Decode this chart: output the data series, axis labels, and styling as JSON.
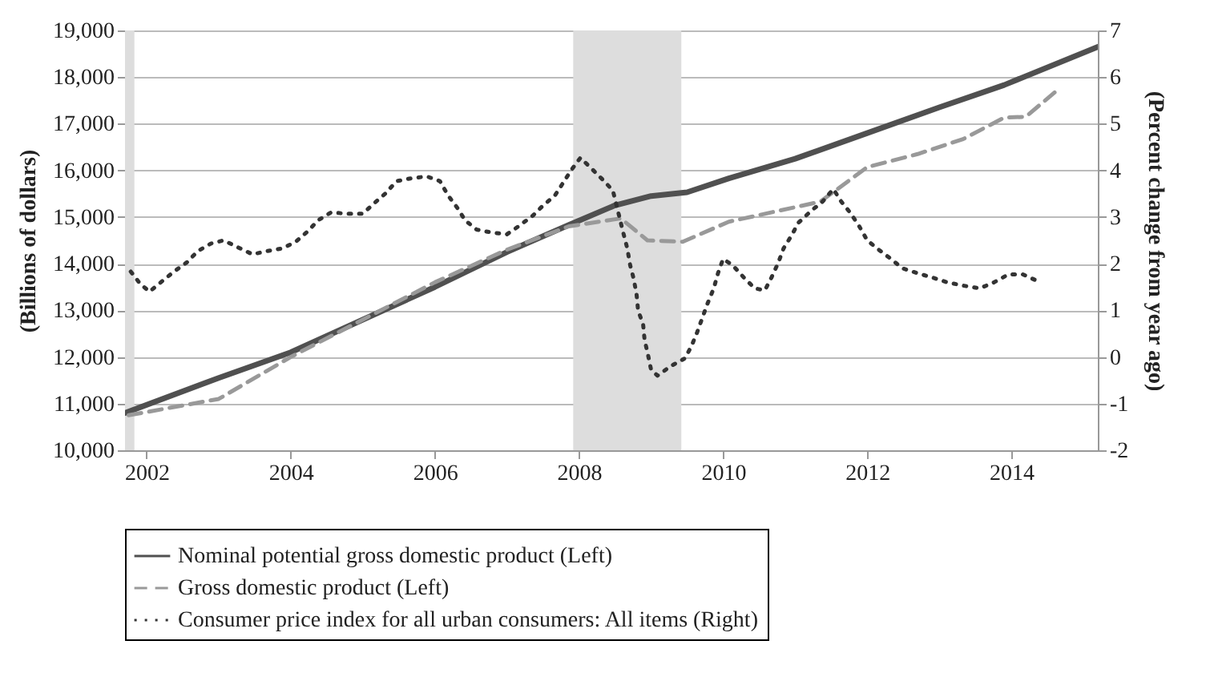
{
  "chart_data": {
    "type": "line",
    "ylabel": "(Billions of dollars)",
    "y2label": "(Percent change from year ago)",
    "xlim": [
      2001.7,
      2015.2
    ],
    "xticks": [
      2002,
      2004,
      2006,
      2008,
      2010,
      2012,
      2014
    ],
    "ylim": [
      10000,
      19000
    ],
    "yticks": [
      {
        "value": 10000,
        "label": "10,000"
      },
      {
        "value": 11000,
        "label": "11,000"
      },
      {
        "value": 12000,
        "label": "12,000"
      },
      {
        "value": 13000,
        "label": "13,000"
      },
      {
        "value": 14000,
        "label": "14,000"
      },
      {
        "value": 15000,
        "label": "15,000"
      },
      {
        "value": 16000,
        "label": "16,000"
      },
      {
        "value": 17000,
        "label": "17,000"
      },
      {
        "value": 18000,
        "label": "18,000"
      },
      {
        "value": 19000,
        "label": "19,000"
      }
    ],
    "y2lim": [
      -2,
      7
    ],
    "y2ticks": [
      -2,
      -1,
      0,
      1,
      2,
      3,
      4,
      5,
      6,
      7
    ],
    "grid": "y",
    "legend": "bottom",
    "bands": [
      {
        "axis": "x",
        "from": 2001.7,
        "to": 2001.83,
        "color": "#dddddd"
      },
      {
        "axis": "x",
        "from": 2007.92,
        "to": 2009.42,
        "color": "#dddddd"
      }
    ],
    "series": [
      {
        "name": "Nominal potential gross domestic product (Left)",
        "color": "#505050",
        "line_style": "solid",
        "x": [
          2001.7,
          2003,
          2004,
          2005,
          2006,
          2007,
          2007.86,
          2008.5,
          2009,
          2009.5,
          2010.08,
          2011,
          2012,
          2013,
          2013.9,
          2015.2
        ],
        "values": [
          10800,
          11550,
          12100,
          12800,
          13500,
          14250,
          14830,
          15250,
          15450,
          15530,
          15830,
          16250,
          16800,
          17350,
          17830,
          18650
        ]
      },
      {
        "name": "Gross domestic product (Left)",
        "color": "#999999",
        "line_style": "dashed",
        "x": [
          2001.75,
          2003,
          2004,
          2005,
          2006,
          2007,
          2007.86,
          2008.58,
          2008.95,
          2009.44,
          2010.08,
          2011.35,
          2012,
          2012.7,
          2013.33,
          2013.9,
          2014.2,
          2014.6
        ],
        "values": [
          10750,
          11100,
          12000,
          12800,
          13600,
          14300,
          14800,
          14970,
          14500,
          14470,
          14900,
          15330,
          16070,
          16350,
          16670,
          17130,
          17150,
          17670
        ]
      },
      {
        "name": "Consumer price index for all urban consumers: All items (Right)",
        "color": "#333333",
        "line_style": "dotted",
        "axis": "y2",
        "x": [
          2001.78,
          2001.91,
          2002.04,
          2002.22,
          2002.38,
          2002.56,
          2002.71,
          2002.89,
          2003.07,
          2003.24,
          2003.47,
          2003.67,
          2003.89,
          2004.07,
          2004.24,
          2004.38,
          2004.56,
          2004.78,
          2005,
          2005.16,
          2005.31,
          2005.47,
          2005.67,
          2005.89,
          2006.07,
          2006.18,
          2006.31,
          2006.42,
          2006.58,
          2006.78,
          2007,
          2007.16,
          2007.36,
          2007.49,
          2007.67,
          2007.89,
          2008.02,
          2008.18,
          2008.33,
          2008.47,
          2008.62,
          2008.67,
          2008.71,
          2008.76,
          2008.8,
          2008.82,
          2008.89,
          2008.91,
          2008.96,
          2009,
          2009.09,
          2009.27,
          2009.47,
          2009.56,
          2009.64,
          2009.71,
          2009.78,
          2009.87,
          2009.93,
          2010,
          2010.13,
          2010.29,
          2010.44,
          2010.58,
          2010.67,
          2010.76,
          2010.84,
          2010.96,
          2011.04,
          2011.22,
          2011.38,
          2011.53,
          2011.64,
          2011.76,
          2011.89,
          2012,
          2012.16,
          2012.33,
          2012.49,
          2012.69,
          2012.91,
          2013.11,
          2013.33,
          2013.56,
          2013.76,
          2013.96,
          2014.16,
          2014.36
        ],
        "values": [
          1.83,
          1.57,
          1.4,
          1.63,
          1.83,
          2.03,
          2.27,
          2.43,
          2.5,
          2.37,
          2.2,
          2.27,
          2.33,
          2.47,
          2.7,
          2.93,
          3.1,
          3.07,
          3.07,
          3.3,
          3.5,
          3.77,
          3.83,
          3.87,
          3.77,
          3.47,
          3.2,
          2.93,
          2.73,
          2.67,
          2.63,
          2.8,
          3.03,
          3.23,
          3.47,
          4.0,
          4.27,
          4.03,
          3.8,
          3.57,
          2.63,
          2.33,
          1.97,
          1.67,
          1.33,
          1.0,
          0.7,
          0.37,
          0.03,
          -0.27,
          -0.4,
          -0.2,
          -0.03,
          0.23,
          0.53,
          0.83,
          1.13,
          1.47,
          1.8,
          2.1,
          1.97,
          1.7,
          1.47,
          1.43,
          1.7,
          2.0,
          2.33,
          2.63,
          2.87,
          3.13,
          3.33,
          3.6,
          3.33,
          3.1,
          2.8,
          2.5,
          2.3,
          2.1,
          1.9,
          1.8,
          1.7,
          1.6,
          1.53,
          1.47,
          1.6,
          1.77,
          1.77,
          1.63
        ]
      }
    ]
  }
}
